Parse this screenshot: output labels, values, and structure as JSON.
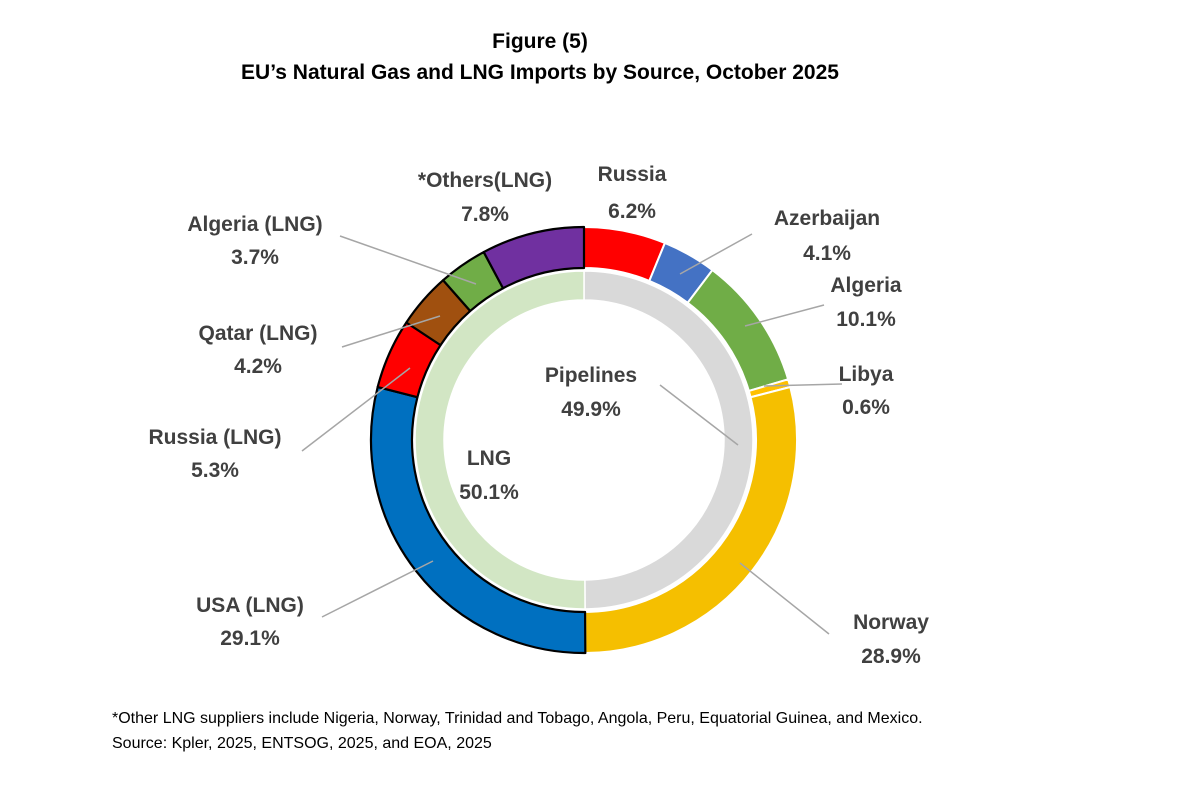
{
  "figure": {
    "number": "Figure (5)",
    "title": "EU’s Natural Gas and LNG Imports by Source, October 2025"
  },
  "chart_data": {
    "type": "pie",
    "title": "EU’s Natural Gas and LNG Imports by Source, October 2025",
    "inner_ring": [
      {
        "label": "Pipelines",
        "value": 49.9,
        "display": "49.9%",
        "color": "#d9d9d9"
      },
      {
        "label": "LNG",
        "value": 50.1,
        "display": "50.1%",
        "color": "#d2e6c4"
      }
    ],
    "outer_ring": [
      {
        "label": "Russia",
        "value": 6.2,
        "display": "6.2%",
        "color": "#ff0000",
        "group": "Pipelines"
      },
      {
        "label": "Azerbaijan",
        "value": 4.1,
        "display": "4.1%",
        "color": "#4472c4",
        "group": "Pipelines"
      },
      {
        "label": "Algeria",
        "value": 10.1,
        "display": "10.1%",
        "color": "#70ad47",
        "group": "Pipelines"
      },
      {
        "label": "Libya",
        "value": 0.6,
        "display": "0.6%",
        "color": "#ffc000",
        "group": "Pipelines"
      },
      {
        "label": "Norway",
        "value": 28.9,
        "display": "28.9%",
        "color": "#f5bf00",
        "group": "Pipelines"
      },
      {
        "label": "USA (LNG)",
        "value": 29.1,
        "display": "29.1%",
        "color": "#0070c0",
        "group": "LNG"
      },
      {
        "label": "Russia (LNG)",
        "value": 5.3,
        "display": "5.3%",
        "color": "#ff0000",
        "group": "LNG"
      },
      {
        "label": "Qatar (LNG)",
        "value": 4.2,
        "display": "4.2%",
        "color": "#a0500f",
        "group": "LNG"
      },
      {
        "label": "Algeria  (LNG)",
        "value": 3.7,
        "display": "3.7%",
        "color": "#70ad47",
        "group": "LNG"
      },
      {
        "label": "*Others(LNG)",
        "value": 7.8,
        "display": "7.8%",
        "color": "#7030a0",
        "group": "LNG"
      }
    ]
  },
  "footnotes": {
    "others": "*Other LNG suppliers include Nigeria, Norway, Trinidad and Tobago, Angola, Peru, Equatorial Guinea, and Mexico.",
    "source": "Source: Kpler, 2025, ENTSOG, 2025, and EOA, 2025"
  }
}
